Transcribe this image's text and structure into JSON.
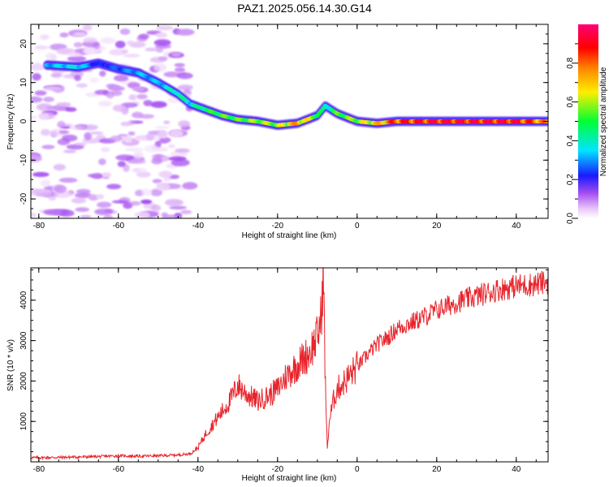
{
  "title": "PAZ1.2025.056.14.30.G14",
  "chart_data": [
    {
      "type": "heatmap",
      "xlabel": "Height of straight line (km)",
      "ylabel": "Frequency (Hz)",
      "xlim": [
        -82,
        48
      ],
      "ylim": [
        -25,
        25
      ],
      "x_ticks": [
        -80,
        -60,
        -40,
        -20,
        0,
        20,
        40
      ],
      "y_ticks": [
        -20,
        -10,
        0,
        10,
        20
      ],
      "colorbar": {
        "label": "Normalized spectral amplitude",
        "range": [
          0,
          1
        ],
        "ticks": [
          0.0,
          0.2,
          0.4,
          0.6,
          0.8
        ],
        "colors": [
          "#ffffff",
          "#e9c6f9",
          "#a44df0",
          "#1a1aff",
          "#00e5ff",
          "#00ff33",
          "#ffee00",
          "#ff8800",
          "#ff0000",
          "#ff0077"
        ]
      },
      "ridge": {
        "x": [
          -78,
          -70,
          -65,
          -60,
          -55,
          -50,
          -45,
          -42,
          -38,
          -34,
          -30,
          -25,
          -20,
          -15,
          -10,
          -8,
          -5,
          0,
          5,
          10,
          20,
          30,
          40,
          48
        ],
        "y": [
          14.5,
          14.0,
          15.0,
          13.5,
          12.5,
          10.0,
          7.0,
          4.5,
          3.0,
          1.5,
          0.5,
          0.0,
          -1.0,
          -0.5,
          1.5,
          4.0,
          2.0,
          0.0,
          -0.5,
          0.0,
          0.0,
          0.0,
          0.0,
          0.0
        ],
        "amplitude": [
          0.3,
          0.35,
          0.2,
          0.25,
          0.3,
          0.3,
          0.4,
          0.35,
          0.45,
          0.5,
          0.5,
          0.55,
          0.55,
          0.7,
          0.5,
          0.35,
          0.5,
          0.55,
          0.65,
          0.8,
          0.85,
          0.85,
          0.85,
          0.7
        ]
      }
    },
    {
      "type": "line",
      "xlabel": "Height of straight line (km)",
      "ylabel": "SNR (10 * v/v)",
      "xlim": [
        -82,
        48
      ],
      "ylim": [
        0,
        4800
      ],
      "x_ticks": [
        -80,
        -60,
        -40,
        -20,
        0,
        20,
        40
      ],
      "y_ticks": [
        1000,
        2000,
        3000,
        4000
      ],
      "line_color": "#e8242c",
      "series": [
        {
          "x": [
            -82,
            -75,
            -70,
            -65,
            -60,
            -55,
            -50,
            -45,
            -42,
            -40,
            -38,
            -35,
            -32,
            -30,
            -28,
            -25,
            -22,
            -20,
            -18,
            -15,
            -12,
            -10,
            -9,
            -8.5,
            -8,
            -7.5,
            -7,
            -6,
            -5,
            -3,
            0,
            3,
            5,
            8,
            10,
            15,
            20,
            25,
            30,
            35,
            40,
            45,
            48
          ],
          "y": [
            100,
            110,
            120,
            130,
            150,
            140,
            150,
            170,
            200,
            350,
            700,
            1100,
            1500,
            1900,
            1700,
            1500,
            1650,
            1800,
            2100,
            2400,
            2700,
            3100,
            3600,
            4800,
            2000,
            300,
            1000,
            1500,
            1800,
            2000,
            2350,
            2700,
            2900,
            3100,
            3300,
            3500,
            3750,
            3950,
            4100,
            4250,
            4350,
            4400,
            4450
          ]
        }
      ]
    }
  ]
}
